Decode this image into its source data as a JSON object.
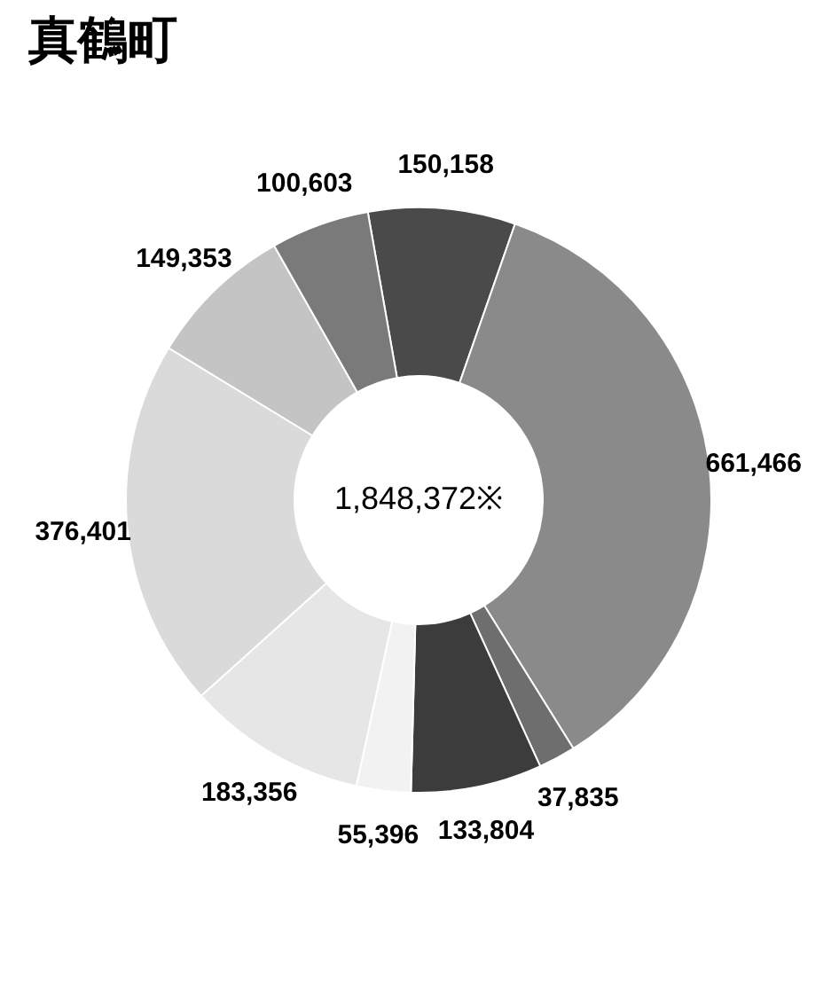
{
  "chart_data": {
    "type": "donut",
    "title": "真鶴町",
    "categories": [
      null,
      null,
      null,
      null,
      null,
      null,
      null,
      null,
      null
    ],
    "values": [
      150158,
      661466,
      37835,
      133804,
      55396,
      183356,
      376401,
      149353,
      100603
    ],
    "colors": [
      "#4a4a4a",
      "#8a8a8a",
      "#6e6e6e",
      "#3c3c3c",
      "#f2f2f2",
      "#e6e6e6",
      "#dadada",
      "#c4c4c4",
      "#7a7a7a"
    ],
    "value_labels": [
      "150,158",
      "661,466",
      "37,835",
      "133,804",
      "55,396",
      "183,356",
      "376,401",
      "149,353",
      "100,603"
    ],
    "annotations": [
      "1,848,372※"
    ]
  }
}
